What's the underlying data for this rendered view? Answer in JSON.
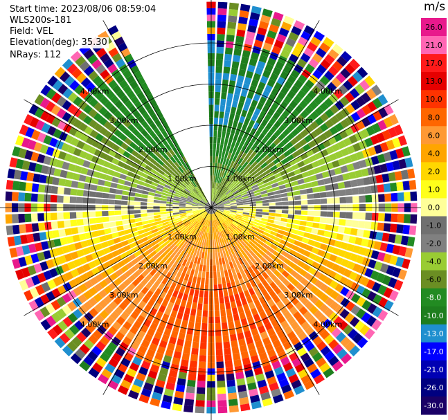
{
  "info": {
    "start_time": "Start time: 2023/08/06 08:59:04",
    "site": "WLS200s-181",
    "field": "Field: VEL",
    "elevation": "Elevation(deg): 35.30",
    "nrays": "NRays: 112"
  },
  "colorbar": {
    "unit": "m/s",
    "labels": [
      "26.0",
      "21.0",
      "17.0",
      "13.0",
      "10.0",
      "8.0",
      "6.0",
      "4.0",
      "2.0",
      "1.0",
      "0.0",
      "-1.0",
      "-2.0",
      "-4.0",
      "-6.0",
      "-8.0",
      "-10.0",
      "-13.0",
      "-17.0",
      "-21.0",
      "-26.0",
      "-30.0"
    ],
    "colors": [
      "#e8198c",
      "#ff66b3",
      "#ff1a1a",
      "#e60000",
      "#ff3300",
      "#ff6600",
      "#ff9933",
      "#ffa500",
      "#ffd700",
      "#ffff1a",
      "#ffff99",
      "#707070",
      "#808080",
      "#99cc33",
      "#6b8e23",
      "#228b22",
      "#1e7e1e",
      "#1f8fcf",
      "#0000ff",
      "#0000b3",
      "#000080",
      "#1a0066"
    ]
  },
  "chart_data": {
    "type": "ppi",
    "title": "Field: VEL",
    "field": "VEL",
    "unit": "m/s",
    "nrays": 112,
    "elevation_deg": 35.3,
    "range_rings_km": [
      1.0,
      2.0,
      3.0,
      4.0
    ],
    "ring_labels": [
      "1.00km",
      "2.00km",
      "3.00km",
      "4.00km"
    ],
    "max_range_km": 5.0,
    "blank_sector_deg": [
      334,
      360
    ],
    "wind_pattern": {
      "toward_sector_center_deg": 180,
      "away_sector_center_deg": 0,
      "peak_positive_ms": 10.0,
      "peak_negative_ms": -10.0,
      "noise_range_km": 4.0
    }
  }
}
